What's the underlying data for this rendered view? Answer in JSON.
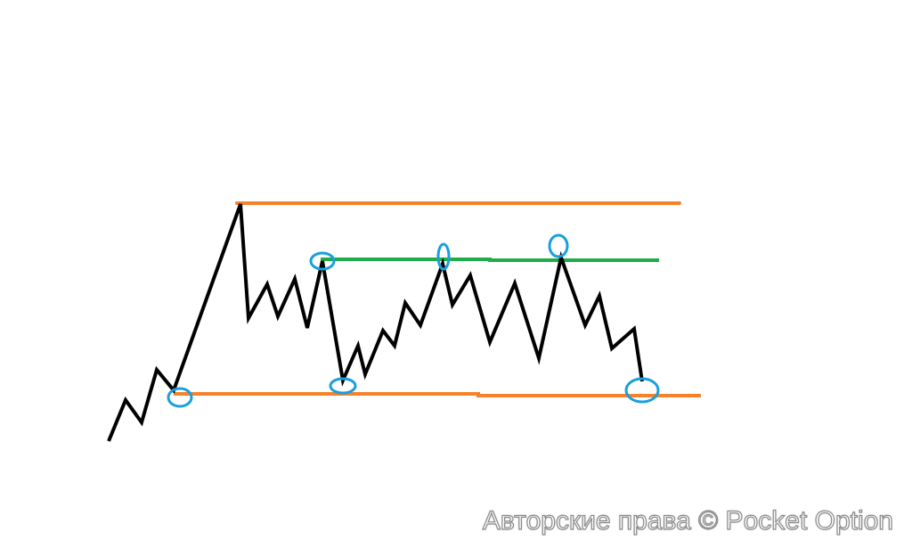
{
  "watermark": "Авторские права © Pocket Option",
  "colors": {
    "price_line": "#000000",
    "support_resistance_lines": "#f5822a",
    "mid_level_line": "#1fad4a",
    "touch_markers": "#1a9fdc",
    "background": "#ffffff"
  }
}
